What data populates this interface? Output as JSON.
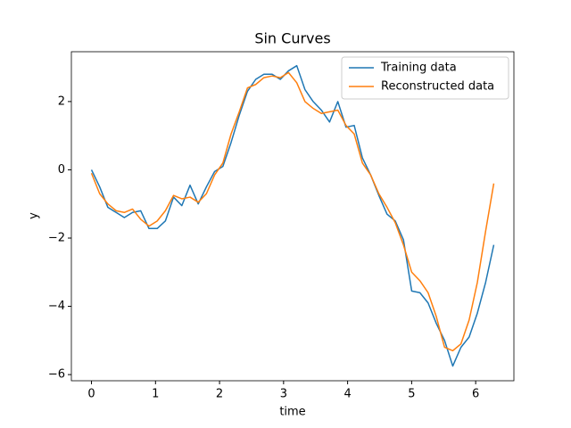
{
  "chart_data": {
    "type": "line",
    "title": "Sin Curves",
    "x_label": "time",
    "y_label": "y",
    "x": [
      0,
      0.128,
      0.256,
      0.385,
      0.513,
      0.641,
      0.769,
      0.898,
      1.026,
      1.154,
      1.282,
      1.411,
      1.539,
      1.667,
      1.795,
      1.923,
      2.052,
      2.18,
      2.308,
      2.436,
      2.565,
      2.693,
      2.821,
      2.949,
      3.077,
      3.206,
      3.334,
      3.462,
      3.59,
      3.718,
      3.847,
      3.975,
      4.103,
      4.231,
      4.36,
      4.488,
      4.616,
      4.744,
      4.872,
      5.001,
      5.129,
      5.257,
      5.385,
      5.514,
      5.642,
      5.77,
      5.898,
      6.026,
      6.155,
      6.283
    ],
    "series": [
      {
        "name": "Training data",
        "color": "#1f77b4",
        "values": [
          0,
          -0.5,
          -1.1,
          -1.25,
          -1.4,
          -1.25,
          -1.2,
          -1.72,
          -1.72,
          -1.5,
          -0.8,
          -1.05,
          -0.45,
          -1.0,
          -0.5,
          -0.05,
          0.1,
          0.8,
          1.6,
          2.3,
          2.65,
          2.8,
          2.8,
          2.65,
          2.9,
          3.05,
          2.35,
          2.0,
          1.75,
          1.4,
          2.0,
          1.25,
          1.3,
          0.35,
          -0.15,
          -0.75,
          -1.3,
          -1.5,
          -2.05,
          -3.55,
          -3.6,
          -3.9,
          -4.5,
          -5.0,
          -5.75,
          -5.2,
          -4.9,
          -4.2,
          -3.3,
          -2.2
        ]
      },
      {
        "name": "Reconstructed data",
        "color": "#ff7f0e",
        "values": [
          -0.1,
          -0.7,
          -1.0,
          -1.2,
          -1.25,
          -1.15,
          -1.45,
          -1.65,
          -1.5,
          -1.2,
          -0.75,
          -0.85,
          -0.8,
          -0.95,
          -0.7,
          -0.15,
          0.2,
          1.05,
          1.7,
          2.4,
          2.5,
          2.7,
          2.75,
          2.7,
          2.85,
          2.55,
          2.0,
          1.8,
          1.65,
          1.7,
          1.75,
          1.3,
          1.05,
          0.2,
          -0.15,
          -0.7,
          -1.1,
          -1.55,
          -2.2,
          -3.0,
          -3.25,
          -3.6,
          -4.3,
          -5.2,
          -5.3,
          -5.1,
          -4.4,
          -3.3,
          -1.8,
          -0.4
        ]
      }
    ],
    "xlim": [
      -0.314,
      6.597
    ],
    "xticks": [
      0,
      1,
      2,
      3,
      4,
      5,
      6
    ],
    "ylim": [
      -6.18,
      3.46
    ],
    "yticks": [
      {
        "value": -6,
        "label": "−6"
      },
      {
        "value": -4,
        "label": "−4"
      },
      {
        "value": -2,
        "label": "−2"
      },
      0,
      2
    ],
    "legend": "upper right",
    "grid": false
  }
}
